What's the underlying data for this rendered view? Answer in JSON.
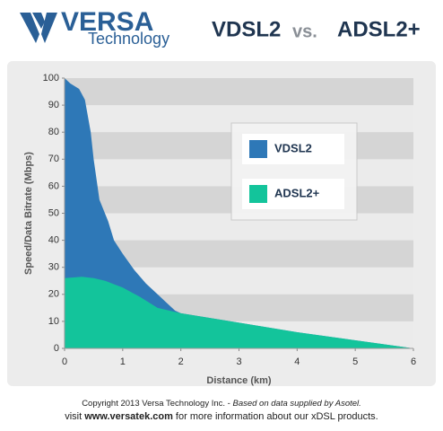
{
  "logo": {
    "name": "VERSA",
    "tagline": "Technology"
  },
  "chart_data": {
    "type": "area",
    "title_parts": [
      "VDSL2",
      "vs.",
      "ADSL2+"
    ],
    "x_label": "Distance (km)",
    "y_label": "Speed/Data Bitrate (Mbps)",
    "xlim": [
      0,
      6
    ],
    "xticks": [
      0,
      1,
      2,
      3,
      4,
      5,
      6
    ],
    "ylim": [
      0,
      100
    ],
    "yticks": [
      0,
      10,
      20,
      30,
      40,
      50,
      60,
      70,
      80,
      90,
      100
    ],
    "grid": "bands",
    "legend": "upper right",
    "series": [
      {
        "name": "VDSL2",
        "color": "#2e78b7",
        "x": [
          0,
          0.1,
          0.25,
          0.35,
          0.45,
          0.5,
          0.6,
          0.75,
          0.85,
          1.0,
          1.2,
          1.4,
          1.6,
          1.75,
          1.9,
          2.0,
          3,
          4,
          5,
          6
        ],
        "values": [
          100,
          98,
          96,
          92,
          80,
          70,
          55,
          47,
          40,
          35,
          29,
          24,
          20,
          17,
          14,
          13,
          9.5,
          6,
          3,
          0
        ]
      },
      {
        "name": "ADSL2+",
        "color": "#13c49b",
        "x": [
          0,
          0.3,
          0.5,
          0.7,
          1.0,
          1.3,
          1.6,
          2.0,
          3,
          4,
          5,
          6
        ],
        "values": [
          26,
          26.5,
          26,
          25,
          22.5,
          19,
          15,
          13,
          9.5,
          6,
          3,
          0
        ]
      }
    ]
  },
  "footer": {
    "line1": [
      "Copyright 2013 Versa Technology Inc. - ",
      "Based on data supplied by Asotel."
    ],
    "line2": [
      "visit ",
      "www.versatek.com",
      " for more information about our xDSL products."
    ]
  }
}
